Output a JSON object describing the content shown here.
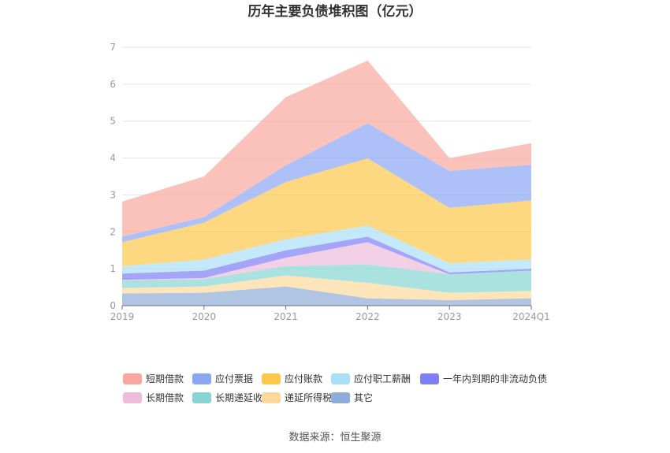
{
  "chart_data": {
    "type": "area",
    "stacked": true,
    "title": "历年主要负债堆积图（亿元）",
    "xlabel": "",
    "ylabel": "",
    "categories": [
      "2019",
      "2020",
      "2021",
      "2022",
      "2023",
      "2024Q1"
    ],
    "ylim": [
      0,
      7
    ],
    "yticks": [
      "0",
      "1",
      "2",
      "3",
      "4",
      "5",
      "6",
      "7"
    ],
    "grid": true,
    "legend_position": "bottom",
    "series": [
      {
        "name": "其它",
        "color": "#8fadd9",
        "values": [
          0.33,
          0.35,
          0.52,
          0.2,
          0.15,
          0.2
        ]
      },
      {
        "name": "递延所得税负债",
        "color": "#fdd89b",
        "values": [
          0.15,
          0.17,
          0.3,
          0.42,
          0.2,
          0.2
        ]
      },
      {
        "name": "长期递延收益",
        "color": "#86d5d2",
        "values": [
          0.2,
          0.2,
          0.25,
          0.5,
          0.5,
          0.55
        ]
      },
      {
        "name": "长期借款",
        "color": "#edbcdb",
        "values": [
          0.02,
          0.03,
          0.23,
          0.6,
          0.0,
          0.0
        ]
      },
      {
        "name": "一年内到期的非流动负债",
        "color": "#7f7ff5",
        "values": [
          0.17,
          0.2,
          0.2,
          0.15,
          0.05,
          0.05
        ]
      },
      {
        "name": "应付职工薪酬",
        "color": "#a9dff9",
        "values": [
          0.2,
          0.3,
          0.3,
          0.3,
          0.25,
          0.25
        ]
      },
      {
        "name": "应付账款",
        "color": "#fcc84b",
        "values": [
          0.65,
          1.0,
          1.55,
          1.82,
          1.5,
          1.6
        ]
      },
      {
        "name": "应付票据",
        "color": "#8aa7f5",
        "values": [
          0.15,
          0.15,
          0.45,
          0.95,
          1.0,
          0.97
        ]
      },
      {
        "name": "短期借款",
        "color": "#f9a89f",
        "values": [
          0.95,
          1.1,
          1.85,
          1.7,
          0.35,
          0.58
        ]
      }
    ]
  },
  "legend_order": [
    "短期借款",
    "应付票据",
    "应付账款",
    "应付职工薪酬",
    "一年内到期的非流动负债",
    "长期借款",
    "长期递延收益",
    "递延所得税负债",
    "其它"
  ],
  "source_text": "数据来源：恒生聚源"
}
